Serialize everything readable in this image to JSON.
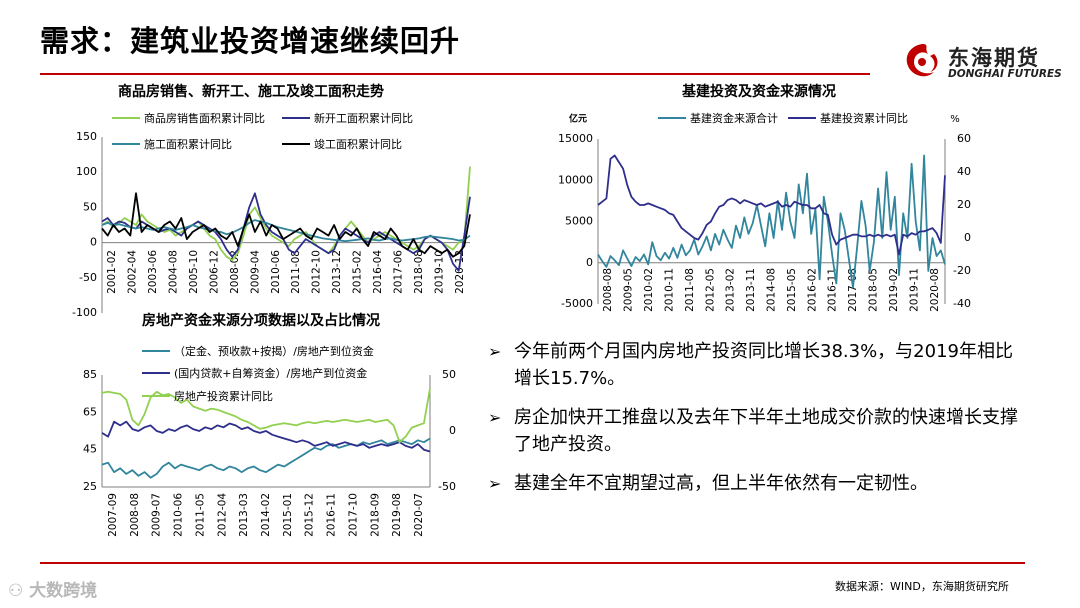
{
  "page": {
    "title": "需求：建筑业投资增速继续回升",
    "logo_cn": "东海期货",
    "logo_en": "DONGHAI FUTURES",
    "source": "数据来源：WIND，东海期货研究所",
    "watermark": "大数跨境"
  },
  "bullets": [
    "今年前两个月国内房地产投资同比增长38.3%，与2019年相比增长15.7%。",
    "房企加快开工推盘以及去年下半年土地成交价款的快速增长支撑了地产投资。",
    "基建全年不宜期望过高，但上半年依然有一定韧性。"
  ],
  "colors": {
    "green": "#92d050",
    "navy": "#2e2e8c",
    "teal": "#31859c",
    "black": "#000000",
    "red": "#c00000"
  },
  "chart_data": [
    {
      "id": "housing",
      "type": "line",
      "title": "商品房销售、新开工、施工及竣工面积走势",
      "y_ticks": [
        150,
        100,
        50,
        0,
        -50,
        -100
      ],
      "ylim": [
        -100,
        150
      ],
      "x_ticks": [
        "2001-02",
        "2002-04",
        "2003-06",
        "2004-08",
        "2005-10",
        "2006-12",
        "2008-02",
        "2009-04",
        "2010-06",
        "2011-08",
        "2012-10",
        "2013-12",
        "2015-02",
        "2016-04",
        "2017-06",
        "2018-08",
        "2019-10",
        "2020-12"
      ],
      "series": [
        {
          "name": "商品房销售面积累计同比",
          "color": "#92d050",
          "values": [
            25,
            30,
            22,
            28,
            35,
            30,
            25,
            40,
            30,
            25,
            20,
            15,
            18,
            10,
            15,
            20,
            25,
            30,
            20,
            10,
            5,
            -10,
            -20,
            -25,
            -15,
            10,
            40,
            50,
            35,
            20,
            10,
            5,
            0,
            -5,
            5,
            10,
            15,
            5,
            -5,
            -10,
            -15,
            -5,
            10,
            20,
            30,
            20,
            10,
            0,
            5,
            10,
            15,
            10,
            5,
            0,
            -5,
            -10,
            -5,
            5,
            10,
            5,
            0,
            -5,
            -10,
            0,
            5,
            108
          ]
        },
        {
          "name": "新开工面积累计同比",
          "color": "#2e2e8c",
          "values": [
            30,
            35,
            25,
            30,
            28,
            22,
            20,
            30,
            25,
            20,
            15,
            18,
            20,
            15,
            10,
            20,
            25,
            30,
            25,
            20,
            15,
            5,
            -10,
            -20,
            -10,
            20,
            50,
            70,
            40,
            25,
            15,
            10,
            5,
            -10,
            -15,
            -5,
            5,
            0,
            -5,
            -10,
            -15,
            -10,
            10,
            20,
            15,
            10,
            5,
            0,
            10,
            15,
            10,
            5,
            0,
            -5,
            -10,
            -15,
            -10,
            5,
            10,
            5,
            0,
            -10,
            -30,
            -40,
            10,
            65
          ]
        },
        {
          "name": "施工面积累计同比",
          "color": "#31859c",
          "values": [
            25,
            28,
            25,
            26,
            24,
            22,
            20,
            22,
            20,
            18,
            20,
            22,
            20,
            18,
            20,
            22,
            25,
            22,
            20,
            18,
            16,
            15,
            12,
            14,
            18,
            22,
            28,
            32,
            30,
            28,
            25,
            22,
            20,
            18,
            16,
            14,
            12,
            10,
            8,
            6,
            5,
            4,
            3,
            2,
            3,
            4,
            5,
            6,
            4,
            3,
            5,
            6,
            4,
            3,
            4,
            5,
            6,
            8,
            9,
            8,
            7,
            6,
            5,
            3,
            4,
            10
          ]
        },
        {
          "name": "竣工面积累计同比",
          "color": "#000000",
          "values": [
            20,
            10,
            25,
            15,
            20,
            10,
            70,
            15,
            25,
            20,
            15,
            25,
            30,
            20,
            35,
            5,
            15,
            20,
            25,
            15,
            20,
            10,
            5,
            15,
            -5,
            20,
            40,
            15,
            30,
            10,
            25,
            20,
            5,
            10,
            15,
            20,
            10,
            5,
            20,
            15,
            10,
            25,
            5,
            15,
            10,
            20,
            5,
            -5,
            15,
            10,
            5,
            20,
            10,
            -5,
            -10,
            5,
            -10,
            -15,
            -5,
            -10,
            -15,
            -10,
            -20,
            -15,
            -5,
            40
          ]
        }
      ]
    },
    {
      "id": "funds",
      "type": "line",
      "title": "房地产资金来源分项数据以及占比情况",
      "y_left_ticks": [
        85,
        65,
        45,
        25
      ],
      "ylim_left": [
        25,
        85
      ],
      "y_right_ticks": [
        50,
        0,
        -50
      ],
      "ylim_right": [
        -50,
        50
      ],
      "x_ticks": [
        "2007-09",
        "2008-08",
        "2009-07",
        "2010-06",
        "2011-05",
        "2012-04",
        "2013-03",
        "2014-02",
        "2015-01",
        "2015-12",
        "2016-11",
        "2017-10",
        "2018-09",
        "2019-08",
        "2020-07"
      ],
      "series": [
        {
          "name": "（定金、预收款+按揭）/房地产到位资金",
          "color": "#31859c",
          "axis": "left",
          "values": [
            37,
            38,
            33,
            35,
            32,
            34,
            31,
            33,
            30,
            32,
            36,
            38,
            35,
            37,
            36,
            35,
            34,
            36,
            37,
            35,
            34,
            36,
            35,
            33,
            35,
            36,
            34,
            33,
            35,
            37,
            36,
            38,
            40,
            42,
            44,
            46,
            45,
            47,
            48,
            46,
            47,
            48,
            47,
            49,
            48,
            49,
            50,
            48,
            49,
            50,
            49,
            48,
            50,
            49,
            51
          ]
        },
        {
          "name": "(国内贷款+自筹资金）/房地产到位资金",
          "color": "#2e2e8c",
          "axis": "left",
          "values": [
            54,
            52,
            60,
            58,
            60,
            56,
            55,
            57,
            58,
            55,
            54,
            56,
            55,
            57,
            58,
            56,
            55,
            57,
            56,
            58,
            57,
            59,
            58,
            56,
            57,
            55,
            54,
            55,
            53,
            52,
            51,
            50,
            49,
            50,
            49,
            47,
            48,
            49,
            47,
            48,
            49,
            48,
            47,
            48,
            46,
            47,
            48,
            47,
            48,
            49,
            47,
            46,
            48,
            45,
            44
          ]
        },
        {
          "name": "房地产投资累计同比",
          "color": "#92d050",
          "axis": "right",
          "values": [
            34,
            35,
            34,
            33,
            28,
            10,
            5,
            15,
            30,
            35,
            32,
            33,
            30,
            25,
            28,
            22,
            20,
            18,
            20,
            19,
            17,
            15,
            13,
            10,
            8,
            5,
            2,
            3,
            5,
            6,
            7,
            6,
            5,
            7,
            8,
            7,
            8,
            9,
            8,
            9,
            10,
            9,
            8,
            9,
            10,
            8,
            9,
            10,
            5,
            -10,
            -5,
            3,
            5,
            7,
            38
          ]
        }
      ]
    },
    {
      "id": "infra",
      "type": "line",
      "title": "基建投资及资金来源情况",
      "left_unit": "亿元",
      "right_unit": "%",
      "y_left_ticks": [
        15000,
        10000,
        5000,
        0,
        -5000
      ],
      "ylim_left": [
        -5000,
        15000
      ],
      "y_right_ticks": [
        60,
        40,
        20,
        0,
        -20,
        -40
      ],
      "ylim_right": [
        -40,
        60
      ],
      "x_ticks": [
        "2008-08",
        "2009-05",
        "2010-02",
        "2010-11",
        "2011-08",
        "2012-05",
        "2013-02",
        "2013-11",
        "2014-08",
        "2015-05",
        "2016-02",
        "2016-11",
        "2017-08",
        "2018-05",
        "2019-02",
        "2019-11",
        "2020-08"
      ],
      "series": [
        {
          "name": "基建资金来源合计",
          "color": "#31859c",
          "axis": "left",
          "values": [
            1000,
            200,
            -500,
            800,
            300,
            -300,
            1500,
            500,
            -400,
            700,
            200,
            1000,
            -200,
            2500,
            800,
            300,
            1200,
            500,
            1800,
            600,
            2200,
            900,
            1500,
            2800,
            1000,
            2000,
            3200,
            1500,
            3500,
            2200,
            4000,
            2800,
            1800,
            4500,
            3000,
            5500,
            3500,
            4800,
            7000,
            4500,
            2000,
            6000,
            3000,
            7500,
            4000,
            8500,
            5000,
            3000,
            9500,
            6000,
            10800,
            3500,
            6500,
            -2000,
            8000,
            5000,
            1000,
            -2500,
            6000,
            4000,
            500,
            -3000,
            2000,
            7500,
            4500,
            -1000,
            2500,
            9000,
            3000,
            11000,
            4000,
            8000,
            -1500,
            6000,
            3000,
            12000,
            5000,
            1500,
            13000,
            -1000,
            3000,
            800,
            1500,
            -200
          ]
        },
        {
          "name": "基建投资累计同比",
          "color": "#2e2e8c",
          "axis": "right",
          "values": [
            20,
            22,
            24,
            48,
            50,
            46,
            42,
            32,
            25,
            22,
            20,
            20,
            21,
            20,
            19,
            18,
            17,
            15,
            14,
            10,
            6,
            4,
            2,
            0,
            -1,
            3,
            8,
            10,
            15,
            19,
            20,
            23,
            24,
            23,
            21,
            23,
            22,
            21,
            20,
            21,
            19,
            20,
            21,
            22,
            19,
            20,
            19,
            22,
            21,
            20,
            20,
            18,
            18,
            20,
            15,
            14,
            2,
            -4,
            -1,
            0,
            1,
            2,
            2,
            1,
            1,
            2,
            1,
            2,
            1,
            2,
            1,
            2,
            -10,
            2,
            1,
            3,
            2,
            4,
            4,
            5,
            6,
            3,
            -3,
            38
          ]
        }
      ]
    }
  ]
}
